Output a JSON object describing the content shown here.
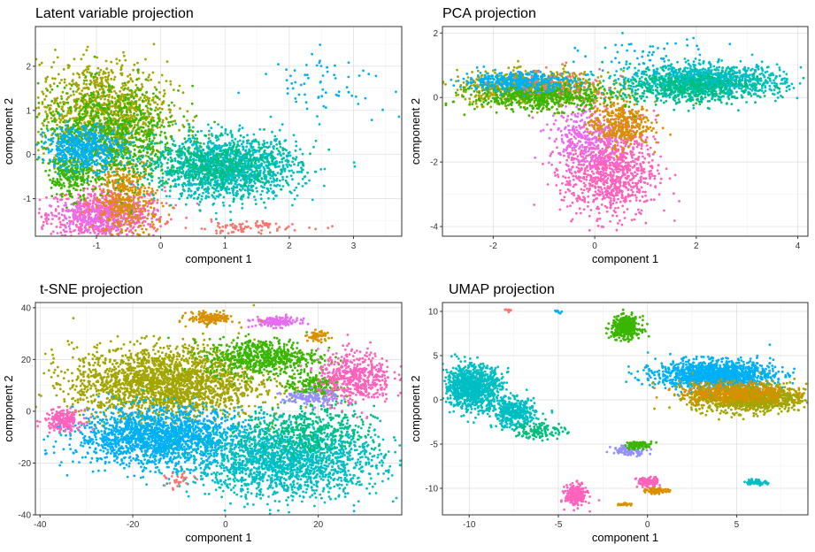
{
  "colors": {
    "clusters": [
      "#F8766D",
      "#D89000",
      "#A3A500",
      "#39B600",
      "#00BF7D",
      "#00BFC4",
      "#00B0F6",
      "#9590FF",
      "#E76BF3",
      "#FF62BC"
    ]
  },
  "chart_data": [
    {
      "type": "scatter",
      "title": "Latent variable projection",
      "xlabel": "component 1",
      "ylabel": "component 2",
      "xlim": [
        -1.95,
        3.75
      ],
      "ylim": [
        -1.85,
        2.9
      ],
      "xticks": [
        -1,
        0,
        1,
        2,
        3
      ],
      "yticks": [
        -1,
        0,
        1,
        2
      ],
      "grid": true,
      "clusters": [
        {
          "color_index": 9,
          "cx": -0.85,
          "cy": -1.35,
          "sx": 0.45,
          "sy": 0.3,
          "n": 700
        },
        {
          "color_index": 8,
          "cx": -1.1,
          "cy": -1.45,
          "sx": 0.3,
          "sy": 0.2,
          "n": 200
        },
        {
          "color_index": 1,
          "cx": -0.55,
          "cy": -1.0,
          "sx": 0.25,
          "sy": 0.5,
          "n": 450
        },
        {
          "color_index": 2,
          "cx": -0.9,
          "cy": 1.0,
          "sx": 0.5,
          "sy": 0.55,
          "n": 1100
        },
        {
          "color_index": 3,
          "cx": -0.8,
          "cy": 0.4,
          "sx": 0.55,
          "sy": 0.55,
          "n": 900
        },
        {
          "color_index": 3,
          "cx": -1.4,
          "cy": -0.5,
          "sx": 0.15,
          "sy": 0.25,
          "n": 200
        },
        {
          "color_index": 6,
          "cx": -1.2,
          "cy": 0.15,
          "sx": 0.3,
          "sy": 0.25,
          "n": 500
        },
        {
          "color_index": 5,
          "cx": 1.05,
          "cy": -0.3,
          "sx": 0.55,
          "sy": 0.35,
          "n": 1400
        },
        {
          "color_index": 4,
          "cx": 0.8,
          "cy": -0.25,
          "sx": 0.55,
          "sy": 0.3,
          "n": 450
        },
        {
          "color_index": 6,
          "cx": 2.55,
          "cy": 1.65,
          "sx": 0.5,
          "sy": 0.35,
          "n": 70
        },
        {
          "color_index": 0,
          "cx": 1.3,
          "cy": -1.65,
          "sx": 0.5,
          "sy": 0.07,
          "n": 90
        }
      ]
    },
    {
      "type": "scatter",
      "title": "PCA projection",
      "xlabel": "component 1",
      "ylabel": "component 2",
      "xlim": [
        -3.0,
        4.2
      ],
      "ylim": [
        -4.3,
        2.2
      ],
      "xticks": [
        -2,
        0,
        2,
        4
      ],
      "yticks": [
        -4,
        -2,
        0,
        2
      ],
      "grid": true,
      "clusters": [
        {
          "color_index": 9,
          "cx": 0.3,
          "cy": -2.2,
          "sx": 0.45,
          "sy": 0.75,
          "n": 1000
        },
        {
          "color_index": 8,
          "cx": -0.2,
          "cy": -1.2,
          "sx": 0.35,
          "sy": 0.5,
          "n": 250
        },
        {
          "color_index": 1,
          "cx": 0.5,
          "cy": -0.8,
          "sx": 0.3,
          "sy": 0.35,
          "n": 350
        },
        {
          "color_index": 2,
          "cx": -1.2,
          "cy": 0.3,
          "sx": 0.75,
          "sy": 0.25,
          "n": 800
        },
        {
          "color_index": 3,
          "cx": -1.0,
          "cy": 0.0,
          "sx": 0.7,
          "sy": 0.2,
          "n": 500
        },
        {
          "color_index": 6,
          "cx": -1.5,
          "cy": 0.5,
          "sx": 0.55,
          "sy": 0.15,
          "n": 400
        },
        {
          "color_index": 5,
          "cx": 2.2,
          "cy": 0.5,
          "sx": 0.75,
          "sy": 0.25,
          "n": 1200
        },
        {
          "color_index": 4,
          "cx": 1.8,
          "cy": 0.3,
          "sx": 0.7,
          "sy": 0.25,
          "n": 400
        },
        {
          "color_index": 6,
          "cx": 1.0,
          "cy": 1.3,
          "sx": 0.6,
          "sy": 0.4,
          "n": 60
        },
        {
          "color_index": 0,
          "cx": -0.7,
          "cy": 0.4,
          "sx": 0.6,
          "sy": 0.3,
          "n": 60
        }
      ]
    },
    {
      "type": "scatter",
      "title": "t-SNE projection",
      "xlabel": "component 1",
      "ylabel": "component 2",
      "xlim": [
        -41,
        38
      ],
      "ylim": [
        -40,
        42
      ],
      "xticks": [
        -40,
        -20,
        0,
        20
      ],
      "yticks": [
        -40,
        -20,
        0,
        20,
        40
      ],
      "grid": true,
      "clusters": [
        {
          "color_index": 2,
          "cx": -13,
          "cy": 11,
          "sx": 10,
          "sy": 7,
          "n": 2200
        },
        {
          "color_index": 6,
          "cx": -14,
          "cy": -10,
          "sx": 9,
          "sy": 5.5,
          "n": 1800
        },
        {
          "color_index": 5,
          "cx": 13,
          "cy": -19,
          "sx": 10,
          "sy": 7,
          "n": 1800
        },
        {
          "color_index": 4,
          "cx": 18,
          "cy": -8,
          "sx": 7,
          "sy": 5,
          "n": 400
        },
        {
          "color_index": 3,
          "cx": 8,
          "cy": 21,
          "sx": 6,
          "sy": 3.5,
          "n": 600
        },
        {
          "color_index": 3,
          "cx": 19,
          "cy": 10,
          "sx": 3,
          "sy": 2.5,
          "n": 200
        },
        {
          "color_index": 9,
          "cx": 28,
          "cy": 13,
          "sx": 4,
          "sy": 5,
          "n": 500
        },
        {
          "color_index": 9,
          "cx": -35,
          "cy": -3.5,
          "sx": 2,
          "sy": 2,
          "n": 200
        },
        {
          "color_index": 8,
          "cx": 11,
          "cy": 34.5,
          "sx": 2.5,
          "sy": 1,
          "n": 150
        },
        {
          "color_index": 1,
          "cx": -3,
          "cy": 36,
          "sx": 2.5,
          "sy": 1.2,
          "n": 150
        },
        {
          "color_index": 7,
          "cx": 18,
          "cy": 5,
          "sx": 3,
          "sy": 1.5,
          "n": 120
        },
        {
          "color_index": 1,
          "cx": 20,
          "cy": 29,
          "sx": 1.2,
          "sy": 1,
          "n": 60
        },
        {
          "color_index": 0,
          "cx": -10,
          "cy": -27,
          "sx": 1.5,
          "sy": 1.5,
          "n": 30
        }
      ]
    },
    {
      "type": "scatter",
      "title": "UMAP projection",
      "xlabel": "component 1",
      "ylabel": "component 2",
      "xlim": [
        -11.5,
        9.0
      ],
      "ylim": [
        -13.0,
        11.0
      ],
      "xticks": [
        -10,
        -5,
        0,
        5
      ],
      "yticks": [
        -10,
        -5,
        0,
        5,
        10
      ],
      "grid": true,
      "clusters": [
        {
          "color_index": 5,
          "cx": -9.8,
          "cy": 1.5,
          "sx": 0.8,
          "sy": 1.2,
          "n": 1000
        },
        {
          "color_index": 5,
          "cx": -7.5,
          "cy": -1.5,
          "sx": 0.6,
          "sy": 0.8,
          "n": 400
        },
        {
          "color_index": 4,
          "cx": -6.0,
          "cy": -3.5,
          "sx": 0.7,
          "sy": 0.5,
          "n": 120
        },
        {
          "color_index": 6,
          "cx": 3.8,
          "cy": 2.8,
          "sx": 1.6,
          "sy": 0.8,
          "n": 1400
        },
        {
          "color_index": 2,
          "cx": 5.7,
          "cy": 0.2,
          "sx": 1.6,
          "sy": 0.8,
          "n": 1100
        },
        {
          "color_index": 1,
          "cx": 4.8,
          "cy": 0.8,
          "sx": 1.5,
          "sy": 0.6,
          "n": 400
        },
        {
          "color_index": 3,
          "cx": -1.2,
          "cy": 8.2,
          "sx": 0.4,
          "sy": 0.6,
          "n": 400
        },
        {
          "color_index": 9,
          "cx": -4.0,
          "cy": -10.8,
          "sx": 0.3,
          "sy": 0.6,
          "n": 250
        },
        {
          "color_index": 9,
          "cx": 0.0,
          "cy": -9.3,
          "sx": 0.3,
          "sy": 0.3,
          "n": 100
        },
        {
          "color_index": 1,
          "cx": 0.5,
          "cy": -10.3,
          "sx": 0.3,
          "sy": 0.15,
          "n": 80
        },
        {
          "color_index": 7,
          "cx": -1.0,
          "cy": -5.7,
          "sx": 0.5,
          "sy": 0.3,
          "n": 100
        },
        {
          "color_index": 3,
          "cx": -0.5,
          "cy": -5.1,
          "sx": 0.4,
          "sy": 0.2,
          "n": 80
        },
        {
          "color_index": 5,
          "cx": 6.1,
          "cy": -9.3,
          "sx": 0.3,
          "sy": 0.15,
          "n": 60
        },
        {
          "color_index": 1,
          "cx": -1.3,
          "cy": -11.8,
          "sx": 0.2,
          "sy": 0.1,
          "n": 30
        },
        {
          "color_index": 0,
          "cx": -7.8,
          "cy": 10.2,
          "sx": 0.1,
          "sy": 0.1,
          "n": 8
        },
        {
          "color_index": 6,
          "cx": -5.0,
          "cy": 10.0,
          "sx": 0.1,
          "sy": 0.1,
          "n": 8
        }
      ]
    }
  ]
}
